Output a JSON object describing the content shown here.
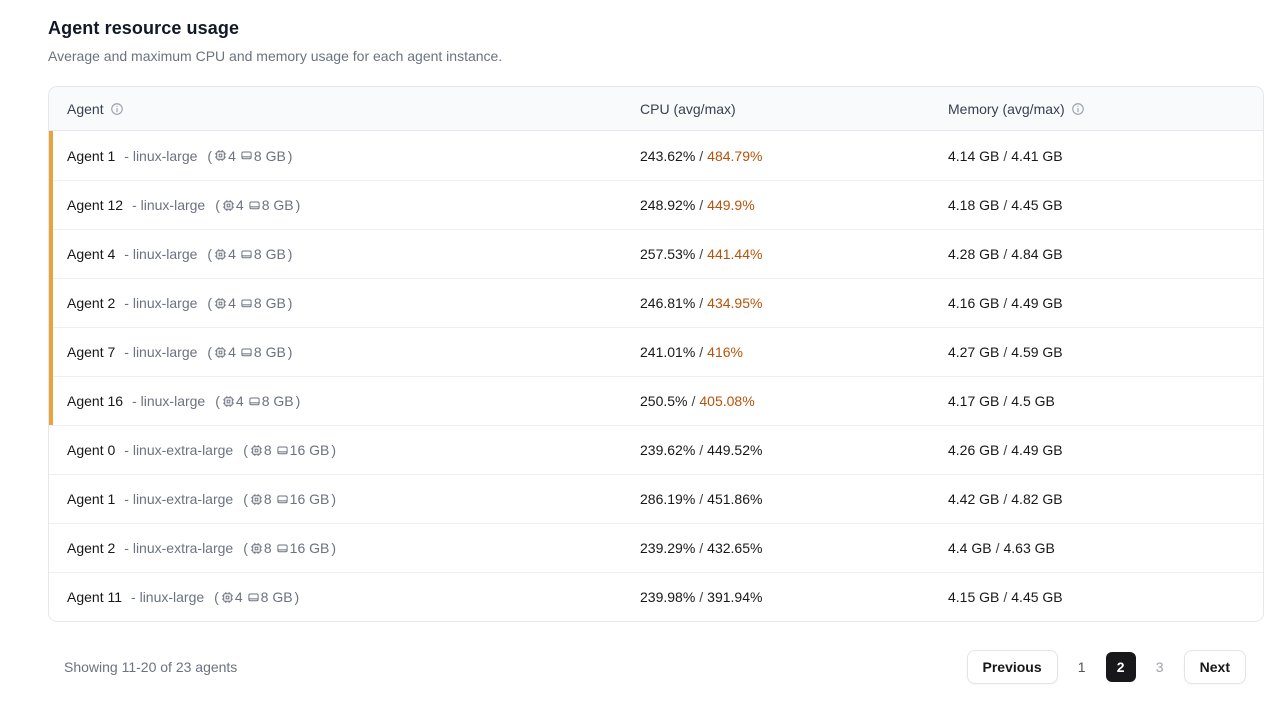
{
  "page": {
    "title": "Agent resource usage",
    "subtitle": "Average and maximum CPU and memory usage for each agent instance."
  },
  "table": {
    "columns": {
      "agent": "Agent",
      "cpu": "CPU (avg/max)",
      "memory": "Memory (avg/max)"
    },
    "name_type_separator": "-",
    "specs_open": "(",
    "specs_close": ")",
    "value_separator": "/",
    "rows": [
      {
        "name": "Agent 1",
        "type": "linux-large",
        "cpus": "4",
        "ram": "8 GB",
        "cpu_avg": "243.62%",
        "cpu_max": "484.79%",
        "mem_avg": "4.14 GB",
        "mem_max": "4.41 GB",
        "flagged": true
      },
      {
        "name": "Agent 12",
        "type": "linux-large",
        "cpus": "4",
        "ram": "8 GB",
        "cpu_avg": "248.92%",
        "cpu_max": "449.9%",
        "mem_avg": "4.18 GB",
        "mem_max": "4.45 GB",
        "flagged": true
      },
      {
        "name": "Agent 4",
        "type": "linux-large",
        "cpus": "4",
        "ram": "8 GB",
        "cpu_avg": "257.53%",
        "cpu_max": "441.44%",
        "mem_avg": "4.28 GB",
        "mem_max": "4.84 GB",
        "flagged": true
      },
      {
        "name": "Agent 2",
        "type": "linux-large",
        "cpus": "4",
        "ram": "8 GB",
        "cpu_avg": "246.81%",
        "cpu_max": "434.95%",
        "mem_avg": "4.16 GB",
        "mem_max": "4.49 GB",
        "flagged": true
      },
      {
        "name": "Agent 7",
        "type": "linux-large",
        "cpus": "4",
        "ram": "8 GB",
        "cpu_avg": "241.01%",
        "cpu_max": "416%",
        "mem_avg": "4.27 GB",
        "mem_max": "4.59 GB",
        "flagged": true
      },
      {
        "name": "Agent 16",
        "type": "linux-large",
        "cpus": "4",
        "ram": "8 GB",
        "cpu_avg": "250.5%",
        "cpu_max": "405.08%",
        "mem_avg": "4.17 GB",
        "mem_max": "4.5 GB",
        "flagged": true
      },
      {
        "name": "Agent 0",
        "type": "linux-extra-large",
        "cpus": "8",
        "ram": "16 GB",
        "cpu_avg": "239.62%",
        "cpu_max": "449.52%",
        "mem_avg": "4.26 GB",
        "mem_max": "4.49 GB",
        "flagged": false
      },
      {
        "name": "Agent 1",
        "type": "linux-extra-large",
        "cpus": "8",
        "ram": "16 GB",
        "cpu_avg": "286.19%",
        "cpu_max": "451.86%",
        "mem_avg": "4.42 GB",
        "mem_max": "4.82 GB",
        "flagged": false
      },
      {
        "name": "Agent 2",
        "type": "linux-extra-large",
        "cpus": "8",
        "ram": "16 GB",
        "cpu_avg": "239.29%",
        "cpu_max": "432.65%",
        "mem_avg": "4.4 GB",
        "mem_max": "4.63 GB",
        "flagged": false
      },
      {
        "name": "Agent 11",
        "type": "linux-large",
        "cpus": "4",
        "ram": "8 GB",
        "cpu_avg": "239.98%",
        "cpu_max": "391.94%",
        "mem_avg": "4.15 GB",
        "mem_max": "4.45 GB",
        "flagged": false
      }
    ]
  },
  "footer": {
    "showing": "Showing 11-20 of 23 agents",
    "pagination": {
      "previous_label": "Previous",
      "page_1": "1",
      "page_2": "2",
      "page_3": "3",
      "active_page": "2",
      "next_label": "Next"
    }
  },
  "colors": {
    "accent_bar": "#e7a43c",
    "cpu_max_warning_text": "#b45309",
    "active_page_bg": "#18181b",
    "header_bg": "#f9fafb",
    "border": "#e5e7eb"
  }
}
